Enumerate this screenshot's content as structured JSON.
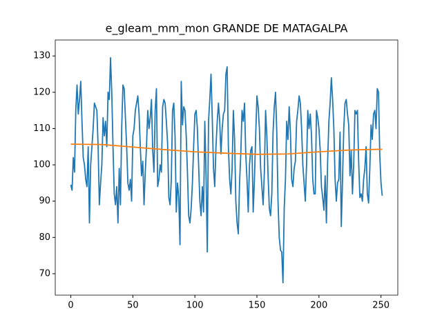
{
  "chart_data": {
    "type": "line",
    "title": "e_gleam_mm_mon GRANDE DE MATAGALPA",
    "xlim": [
      -12.55,
      263.55
    ],
    "xticks": [
      0,
      50,
      100,
      150,
      200,
      250
    ],
    "ylim": [
      64.1,
      134.4
    ],
    "yticks": [
      70,
      80,
      90,
      100,
      110,
      120,
      130
    ],
    "grid": false,
    "series": [
      {
        "color": "#1f77b4",
        "x": [
          0,
          1,
          2,
          3,
          4,
          5,
          6,
          7,
          8,
          9,
          10,
          11,
          12,
          13,
          14,
          15,
          16,
          17,
          18,
          19,
          20,
          21,
          22,
          23,
          24,
          25,
          26,
          27,
          28,
          29,
          30,
          31,
          32,
          33,
          34,
          35,
          36,
          37,
          38,
          39,
          40,
          41,
          42,
          43,
          44,
          45,
          46,
          47,
          48,
          49,
          50,
          51,
          52,
          53,
          54,
          55,
          56,
          57,
          58,
          59,
          60,
          61,
          62,
          63,
          64,
          65,
          66,
          67,
          68,
          69,
          70,
          71,
          72,
          73,
          74,
          75,
          76,
          77,
          78,
          79,
          80,
          81,
          82,
          83,
          84,
          85,
          86,
          87,
          88,
          89,
          90,
          91,
          92,
          93,
          94,
          95,
          96,
          97,
          98,
          99,
          100,
          101,
          102,
          103,
          104,
          105,
          106,
          107,
          108,
          109,
          110,
          111,
          112,
          113,
          114,
          115,
          116,
          117,
          118,
          119,
          120,
          121,
          122,
          123,
          124,
          125,
          126,
          127,
          128,
          129,
          130,
          131,
          132,
          133,
          134,
          135,
          136,
          137,
          138,
          139,
          140,
          141,
          142,
          143,
          144,
          145,
          146,
          147,
          148,
          149,
          150,
          151,
          152,
          153,
          154,
          155,
          156,
          157,
          158,
          159,
          160,
          161,
          162,
          163,
          164,
          165,
          166,
          167,
          168,
          169,
          170,
          171,
          172,
          173,
          174,
          175,
          176,
          177,
          178,
          179,
          180,
          181,
          182,
          183,
          184,
          185,
          186,
          187,
          188,
          189,
          190,
          191,
          192,
          193,
          194,
          195,
          196,
          197,
          198,
          199,
          200,
          201,
          202,
          203,
          204,
          205,
          206,
          207,
          208,
          209,
          210,
          211,
          212,
          213,
          214,
          215,
          216,
          217,
          218,
          219,
          220,
          221,
          222,
          223,
          224,
          225,
          226,
          227,
          228,
          229,
          230,
          231,
          232,
          233,
          234,
          235,
          236,
          237,
          238,
          239,
          240,
          241,
          242,
          243,
          244,
          245,
          246,
          247,
          248,
          249,
          250,
          251
        ],
        "values": [
          94.5,
          93,
          102,
          98,
          115,
          122,
          114,
          118,
          123,
          112,
          102,
          100,
          96,
          94,
          105,
          84,
          100,
          105,
          110,
          117,
          116,
          115,
          105,
          89,
          95,
          100,
          113,
          108,
          112,
          105,
          120,
          118,
          129.5,
          120,
          105,
          92,
          89,
          94,
          84,
          99,
          89,
          110,
          122,
          121,
          113,
          105,
          95,
          93,
          96,
          90,
          108,
          110,
          115,
          117,
          119,
          114,
          105,
          97,
          101,
          89,
          98,
          105,
          115,
          110,
          113,
          118,
          104,
          98,
          115,
          121,
          94,
          96,
          100,
          98,
          116,
          118,
          117,
          112,
          106,
          91,
          89,
          96,
          115,
          117,
          108,
          87,
          95,
          91,
          78,
          123,
          111,
          116,
          115,
          108,
          98,
          86,
          84,
          88,
          95,
          105,
          114,
          115,
          110,
          100,
          90,
          86,
          94,
          87,
          112,
          97,
          76,
          112,
          118,
          125,
          113,
          99,
          94,
          105,
          112,
          117,
          112,
          103,
          110,
          114,
          115,
          125,
          127,
          105,
          96,
          92,
          99,
          115,
          107,
          90,
          84,
          81,
          95,
          103,
          115,
          112,
          117,
          103,
          96,
          87,
          100,
          104,
          105,
          87,
          96,
          108,
          119,
          116,
          110,
          99,
          94,
          89,
          98,
          115,
          108,
          97,
          88,
          86,
          92,
          109,
          116,
          120,
          109,
          90,
          80,
          76.5,
          76,
          67.5,
          88,
          96,
          112,
          107,
          116,
          109,
          96,
          94,
          99,
          101,
          112,
          115,
          119,
          117,
          110,
          100,
          95,
          90,
          100,
          115,
          110,
          114,
          108,
          96,
          92,
          92,
          115,
          113,
          110,
          104,
          94,
          91,
          87.5,
          97,
          84,
          101,
          112,
          117,
          124,
          118,
          110,
          96,
          90,
          95,
          96,
          109,
          83,
          96,
          110,
          117,
          118,
          114,
          111,
          97,
          104,
          92,
          100,
          115,
          114,
          115,
          101,
          91,
          92,
          90,
          96,
          99,
          105,
          92,
          89.5,
          99,
          111,
          107,
          114,
          115,
          110,
          121,
          120,
          103,
          95,
          91.5
        ]
      },
      {
        "color": "#ff7f0e",
        "x": [
          0,
          25,
          50,
          75,
          100,
          125,
          150,
          175,
          200,
          225,
          251
        ],
        "values": [
          105.7,
          105.6,
          104.9,
          104.2,
          103.6,
          103.2,
          102.9,
          103,
          103.6,
          104.1,
          104.3
        ]
      }
    ]
  }
}
